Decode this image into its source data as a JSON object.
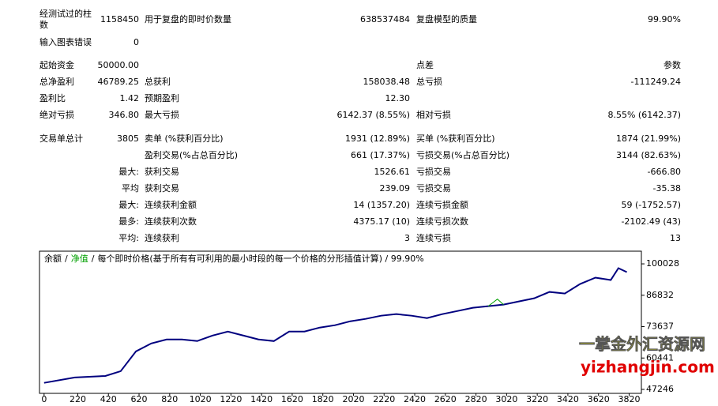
{
  "report": {
    "rows": [
      {
        "label1": "经测试过的柱数",
        "value1": "1158450",
        "label2": "用于复盘的即时价数量",
        "value2": "638537484",
        "label3": "复盘模型的质量",
        "value3": "99.90%"
      },
      {
        "label1": "输入图表错误",
        "value1": "0"
      },
      {
        "label1": "起始资金",
        "value1": "50000.00",
        "label3": "点差",
        "value3": "参数"
      },
      {
        "label1": "总净盈利",
        "value1": "46789.25",
        "label2": "总获利",
        "value2": "158038.48",
        "label3": "总亏损",
        "value3": "-111249.24"
      },
      {
        "label1": "盈利比",
        "value1": "1.42",
        "label2": "预期盈利",
        "value2": "12.30"
      },
      {
        "label1": "绝对亏损",
        "value1": "346.80",
        "label2": "最大亏损",
        "value2": "6142.37 (8.55%)",
        "label3": "相对亏损",
        "value3": "8.55% (6142.37)"
      },
      {
        "label1": "交易单总计",
        "value1": "3805",
        "label2": "卖单 (%获利百分比)",
        "value2": "1931 (12.89%)",
        "label3": "买单 (%获利百分比)",
        "value3": "1874 (21.99%)"
      },
      {
        "label2": "盈利交易(%占总百分比)",
        "value2": "661 (17.37%)",
        "label3": "亏损交易(%占总百分比)",
        "value3": "3144 (82.63%)"
      },
      {
        "value1": "最大:",
        "label2": "获利交易",
        "value2": "1526.61",
        "label3": "亏损交易",
        "value3": "-666.80"
      },
      {
        "value1": "平均",
        "label2": "获利交易",
        "value2": "239.09",
        "label3": "亏损交易",
        "value3": "-35.38"
      },
      {
        "value1": "最大:",
        "label2": "连续获利金额",
        "value2": "14 (1357.20)",
        "label3": "连续亏损金额",
        "value3": "59 (-1752.57)"
      },
      {
        "value1": "最多:",
        "label2": "连续获利次数",
        "value2": "4375.17 (10)",
        "label3": "连续亏损次数",
        "value3": "-2102.49 (43)"
      },
      {
        "value1": "平均:",
        "label2": "连续获利",
        "value2": "3",
        "label3": "连续亏损",
        "value3": "13"
      }
    ]
  },
  "chart_data": {
    "type": "line",
    "separator": "/",
    "legend_note": "每个即时价格(基于所有有可利用的最小时段的每一个价格的分形插值计算) / 99.90%",
    "series": [
      {
        "name": "余额",
        "color": "#00007f",
        "x": [
          0,
          200,
          400,
          500,
          600,
          700,
          800,
          900,
          1000,
          1100,
          1200,
          1300,
          1400,
          1500,
          1600,
          1700,
          1800,
          1900,
          2000,
          2100,
          2200,
          2300,
          2400,
          2500,
          2600,
          2700,
          2800,
          2900,
          3000,
          3100,
          3200,
          3300,
          3400,
          3500,
          3600,
          3700,
          3750,
          3805
        ],
        "values": [
          50000,
          52250,
          52900,
          54900,
          63240,
          66570,
          68240,
          68240,
          67570,
          69900,
          71570,
          69900,
          68240,
          67570,
          71570,
          71570,
          73240,
          74240,
          75900,
          76900,
          78230,
          78900,
          78230,
          77230,
          78900,
          80230,
          81570,
          82230,
          82900,
          84230,
          85560,
          88230,
          87560,
          91560,
          94230,
          93230,
          98230,
          96560
        ]
      },
      {
        "name": "净值",
        "color": "#00a000",
        "x": [
          2900,
          2960,
          3000
        ],
        "values": [
          82230,
          85200,
          82900
        ]
      }
    ],
    "xlim": [
      -30,
      3900
    ],
    "xticks": [
      0,
      220,
      420,
      620,
      820,
      1020,
      1220,
      1420,
      1620,
      1820,
      2020,
      2220,
      2420,
      2620,
      2820,
      3020,
      3220,
      3420,
      3620,
      3820
    ],
    "ylim": [
      45580,
      105360
    ],
    "yticks": [
      47246,
      60441,
      73637,
      86832,
      100028
    ]
  },
  "watermark": {
    "name": "一掌金外汇资源网",
    "url": "yizhangjin.com"
  }
}
